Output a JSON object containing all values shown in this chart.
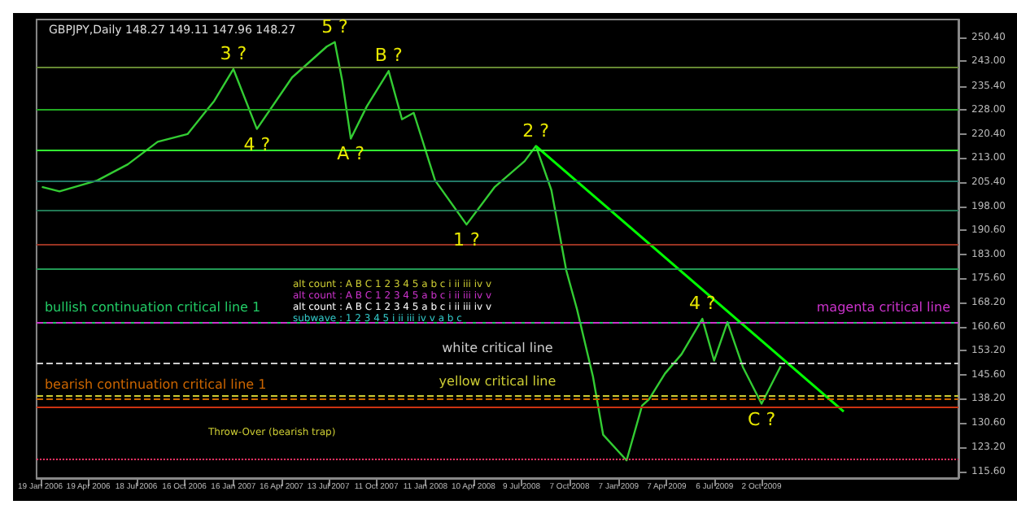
{
  "chart_data": {
    "type": "line",
    "title": "GBPJPY,Daily 148.27 149.11 147.96 148.27",
    "x": [
      "2006-01-22",
      "2006-02-24",
      "2006-05-06",
      "2006-07-02",
      "2006-08-27",
      "2006-10-22",
      "2006-12-11",
      "2007-01-16",
      "2007-03-01",
      "2007-05-06",
      "2007-07-10",
      "2007-07-25",
      "2007-08-08",
      "2007-08-24",
      "2007-09-23",
      "2007-11-03",
      "2007-11-28",
      "2007-12-20",
      "2008-01-29",
      "2008-03-28",
      "2008-05-20",
      "2008-07-15",
      "2008-08-05",
      "2008-09-03",
      "2008-10-01",
      "2008-10-21",
      "2008-11-20",
      "2008-12-09",
      "2009-01-22",
      "2009-02-20",
      "2009-03-05",
      "2009-04-04",
      "2009-05-05",
      "2009-06-13",
      "2009-07-05",
      "2009-07-30",
      "2009-08-28",
      "2009-10-02",
      "2009-11-07"
    ],
    "series": [
      {
        "color": "#33cc33",
        "values": [
          204,
          202.6,
          206,
          211,
          218,
          220.4,
          230.7,
          240.6,
          222,
          238,
          247.6,
          249,
          237,
          219,
          229,
          240,
          225,
          227,
          206,
          192.3,
          204,
          212,
          216.7,
          203,
          178,
          166,
          145,
          127,
          119,
          136,
          138,
          146,
          152,
          163,
          150,
          162,
          148,
          136.6,
          148.3
        ]
      },
      {
        "type": "line",
        "color": "#00ff00",
        "x": [
          "2008-08-05",
          "2010-03-05"
        ],
        "values": [
          216.7,
          134.2
        ]
      }
    ],
    "xlim": [
      "2006-01-12",
      "2010-10-06"
    ],
    "xticks": [
      {
        "value": "2006-01-19",
        "label": "19 Jan 2006"
      },
      {
        "value": "2006-04-19",
        "label": "19 Apr 2006"
      },
      {
        "value": "2006-07-18",
        "label": "18 Jul 2006"
      },
      {
        "value": "2006-10-16",
        "label": "16 Oct 2006"
      },
      {
        "value": "2007-01-16",
        "label": "16 Jan 2007"
      },
      {
        "value": "2007-04-16",
        "label": "16 Apr 2007"
      },
      {
        "value": "2007-07-13",
        "label": "13 Jul 2007"
      },
      {
        "value": "2007-10-11",
        "label": "11 Oct 2007"
      },
      {
        "value": "2008-01-11",
        "label": "11 Jan 2008"
      },
      {
        "value": "2008-04-10",
        "label": "10 Apr 2008"
      },
      {
        "value": "2008-07-09",
        "label": "9 Jul 2008"
      },
      {
        "value": "2008-10-07",
        "label": "7 Oct 2008"
      },
      {
        "value": "2009-01-07",
        "label": "7 Jan 2009"
      },
      {
        "value": "2009-04-07",
        "label": "7 Apr 2009"
      },
      {
        "value": "2009-07-06",
        "label": "6 Jul 2009"
      },
      {
        "value": "2009-10-02",
        "label": "2 Oct 2009"
      }
    ],
    "ylim": [
      113.5,
      256
    ],
    "yticks": [
      {
        "value": 250.4,
        "label": "250.40"
      },
      {
        "value": 243,
        "label": "243.00"
      },
      {
        "value": 235.4,
        "label": "235.40"
      },
      {
        "value": 228,
        "label": "228.00"
      },
      {
        "value": 220.4,
        "label": "220.40"
      },
      {
        "value": 213,
        "label": "213.00"
      },
      {
        "value": 205.4,
        "label": "205.40"
      },
      {
        "value": 198,
        "label": "198.00"
      },
      {
        "value": 190.6,
        "label": "190.60"
      },
      {
        "value": 183,
        "label": "183.00"
      },
      {
        "value": 175.6,
        "label": "175.60"
      },
      {
        "value": 168.2,
        "label": "168.20"
      },
      {
        "value": 160.6,
        "label": "160.60"
      },
      {
        "value": 153.2,
        "label": "153.20"
      },
      {
        "value": 145.6,
        "label": "145.60"
      },
      {
        "value": 138.2,
        "label": "138.20"
      },
      {
        "value": 130.6,
        "label": "130.60"
      },
      {
        "value": 123.2,
        "label": "123.20"
      },
      {
        "value": 115.6,
        "label": "115.60"
      }
    ],
    "ref_lines": [
      {
        "axis": "y",
        "value": 241.2,
        "color": "#668833"
      },
      {
        "axis": "y",
        "value": 228,
        "color": "#22aa22"
      },
      {
        "axis": "y",
        "value": 215.4,
        "color": "#33ff33"
      },
      {
        "axis": "y",
        "value": 206,
        "color": "#227766"
      },
      {
        "axis": "y",
        "value": 196.8,
        "color": "#227755"
      },
      {
        "axis": "y",
        "value": 186,
        "color": "#993322"
      },
      {
        "axis": "y",
        "value": 178.7,
        "color": "#229955"
      },
      {
        "axis": "y",
        "value": 162.09,
        "label": "bullish continuation critical line 1",
        "color": "#22cc66"
      },
      {
        "axis": "y",
        "value": 162.09,
        "label": "magenta critical line",
        "color": "#cc33cc",
        "line_style": "dashed"
      },
      {
        "axis": "y",
        "value": 149.28,
        "label": "white critical line",
        "color": "#cccccc",
        "line_style": "dashed"
      },
      {
        "axis": "y",
        "value": 138.99,
        "label": "yellow critical line",
        "color": "#cccc33",
        "line_style": "dashed"
      },
      {
        "axis": "y",
        "value": 138.1,
        "label": "bearish continuation critical line 1",
        "color": "#cc6600",
        "line_style": "dashed"
      },
      {
        "axis": "y",
        "value": 135.6,
        "color": "#cc3311"
      },
      {
        "axis": "y",
        "value": 119.2,
        "color": "#ff3366",
        "line_style": "dotted"
      }
    ],
    "annotations": [
      {
        "text": "3 ?",
        "x": "2007-01-16",
        "y": 240.6
      },
      {
        "text": "4 ?",
        "x": "2007-03-01",
        "y": 222
      },
      {
        "text": "5 ?",
        "x": "2007-07-25",
        "y": 249
      },
      {
        "text": "A ?",
        "x": "2007-08-24",
        "y": 219
      },
      {
        "text": "B ?",
        "x": "2007-11-03",
        "y": 240
      },
      {
        "text": "1 ?",
        "x": "2008-03-28",
        "y": 192.3
      },
      {
        "text": "2 ?",
        "x": "2008-08-05",
        "y": 216.7
      },
      {
        "text": "4 ?",
        "x": "2009-06-13",
        "y": 163
      },
      {
        "text": "C ?",
        "x": "2009-10-02",
        "y": 136.6
      },
      "alt count : A B C 1 2 3 4 5 a b c i ii iii iv v",
      "alt count : A B C 1 2 3 4 5 a b c i ii iii iv v",
      "alt count : A B C 1 2 3 4 5 a b c i ii iii iv v",
      "subwave : 1 2 3 4 5 i ii iii iv v a b c",
      "Throw-Over (bearish trap)"
    ],
    "grid": false,
    "marker": "none",
    "line_style": "solid"
  }
}
